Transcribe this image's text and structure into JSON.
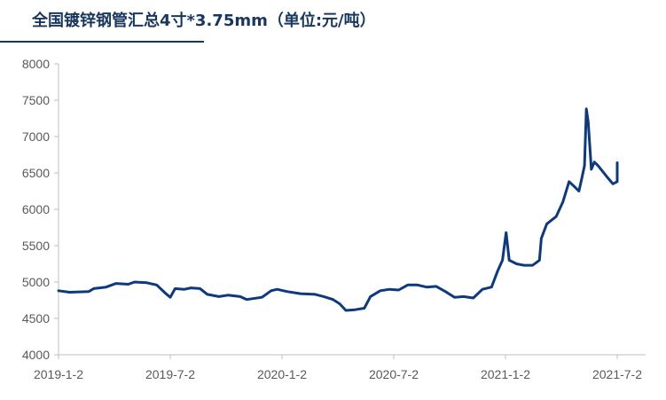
{
  "title": "全国镀锌钢管汇总4寸*3.75mm（单位:元/吨）",
  "colors": {
    "line": "#0d3a7e",
    "axis": "#bfbfbf",
    "title": "#17375e"
  },
  "chart_data": {
    "type": "line",
    "title": "全国镀锌钢管汇总4寸*3.75mm（单位:元/吨）",
    "xlabel": "",
    "ylabel": "",
    "ylim": [
      4000,
      8000
    ],
    "yticks": [
      "4000",
      "4500",
      "5000",
      "5500",
      "6000",
      "6500",
      "7000",
      "7500",
      "8000"
    ],
    "xticks": [
      "2019-1-2",
      "2019-7-2",
      "2020-1-2",
      "2020-7-2",
      "2021-1-2",
      "2021-7-2"
    ],
    "grid": false,
    "legend": "none",
    "series": [
      {
        "values": [
          [
            "2019-01-02",
            4880
          ],
          [
            "2019-01-20",
            4860
          ],
          [
            "2019-02-20",
            4870
          ],
          [
            "2019-02-28",
            4910
          ],
          [
            "2019-03-20",
            4930
          ],
          [
            "2019-04-05",
            4980
          ],
          [
            "2019-04-25",
            4970
          ],
          [
            "2019-05-05",
            5000
          ],
          [
            "2019-05-25",
            4990
          ],
          [
            "2019-06-10",
            4960
          ],
          [
            "2019-06-25",
            4840
          ],
          [
            "2019-07-02",
            4790
          ],
          [
            "2019-07-10",
            4910
          ],
          [
            "2019-07-25",
            4900
          ],
          [
            "2019-08-05",
            4920
          ],
          [
            "2019-08-20",
            4910
          ],
          [
            "2019-09-01",
            4830
          ],
          [
            "2019-09-20",
            4800
          ],
          [
            "2019-10-05",
            4820
          ],
          [
            "2019-10-25",
            4800
          ],
          [
            "2019-11-05",
            4760
          ],
          [
            "2019-11-30",
            4790
          ],
          [
            "2019-12-15",
            4880
          ],
          [
            "2019-12-25",
            4900
          ],
          [
            "2020-01-10",
            4870
          ],
          [
            "2020-02-01",
            4840
          ],
          [
            "2020-02-25",
            4830
          ],
          [
            "2020-03-10",
            4800
          ],
          [
            "2020-03-25",
            4760
          ],
          [
            "2020-04-05",
            4700
          ],
          [
            "2020-04-15",
            4610
          ],
          [
            "2020-04-30",
            4620
          ],
          [
            "2020-05-15",
            4640
          ],
          [
            "2020-05-25",
            4800
          ],
          [
            "2020-06-10",
            4880
          ],
          [
            "2020-06-25",
            4900
          ],
          [
            "2020-07-10",
            4890
          ],
          [
            "2020-07-25",
            4960
          ],
          [
            "2020-08-10",
            4960
          ],
          [
            "2020-08-25",
            4930
          ],
          [
            "2020-09-10",
            4940
          ],
          [
            "2020-09-25",
            4870
          ],
          [
            "2020-10-10",
            4790
          ],
          [
            "2020-10-25",
            4800
          ],
          [
            "2020-11-10",
            4780
          ],
          [
            "2020-11-25",
            4900
          ],
          [
            "2020-12-10",
            4930
          ],
          [
            "2020-12-20",
            5150
          ],
          [
            "2020-12-28",
            5300
          ],
          [
            "2021-01-03",
            5680
          ],
          [
            "2021-01-08",
            5300
          ],
          [
            "2021-01-20",
            5250
          ],
          [
            "2021-02-01",
            5230
          ],
          [
            "2021-02-15",
            5230
          ],
          [
            "2021-02-26",
            5300
          ],
          [
            "2021-03-01",
            5600
          ],
          [
            "2021-03-10",
            5800
          ],
          [
            "2021-03-25",
            5900
          ],
          [
            "2021-04-05",
            6100
          ],
          [
            "2021-04-15",
            6380
          ],
          [
            "2021-04-25",
            6300
          ],
          [
            "2021-05-01",
            6250
          ],
          [
            "2021-05-05",
            6400
          ],
          [
            "2021-05-10",
            6600
          ],
          [
            "2021-05-13",
            7380
          ],
          [
            "2021-05-16",
            7200
          ],
          [
            "2021-05-21",
            6550
          ],
          [
            "2021-05-26",
            6650
          ],
          [
            "2021-06-01",
            6600
          ],
          [
            "2021-06-15",
            6450
          ],
          [
            "2021-06-25",
            6350
          ],
          [
            "2021-07-02",
            6380
          ],
          [
            "2021-07-10",
            6550
          ],
          [
            "2021-07-20",
            6640
          ],
          [
            "2021-07-28",
            6600
          ],
          [
            "2021-08-02",
            6610
          ]
        ]
      }
    ]
  }
}
